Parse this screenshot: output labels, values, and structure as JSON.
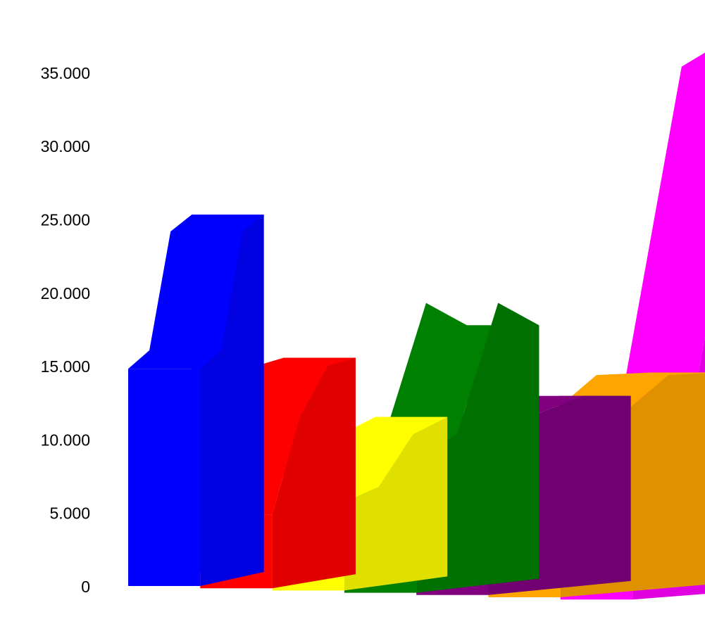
{
  "chart_data": {
    "type": "area",
    "style": "3d-ribbon",
    "title": "",
    "xlabel": "",
    "ylabel": "",
    "ylim": [
      0,
      37500
    ],
    "y_ticks": [
      "0",
      "5.000",
      "10.000",
      "15.000",
      "20.000",
      "25.000",
      "30.000",
      "35.000"
    ],
    "y_tick_values": [
      0,
      5000,
      10000,
      15000,
      20000,
      25000,
      30000,
      35000
    ],
    "grid": false,
    "legend": "none",
    "x_points": 4,
    "series": [
      {
        "color": "#0000ff",
        "values": [
          14800,
          15900,
          24000,
          25100
        ]
      },
      {
        "color": "#ff0000",
        "values": [
          5000,
          11500,
          14800,
          15200
        ]
      },
      {
        "color": "#ffff00",
        "values": [
          6000,
          6800,
          10200,
          11200
        ]
      },
      {
        "color": "#008000",
        "values": [
          9000,
          10600,
          19500,
          17800
        ]
      },
      {
        "color": "#800080",
        "values": [
          11800,
          12100,
          13200,
          13000
        ]
      },
      {
        "color": "#ffa500",
        "values": [
          7500,
          11800,
          14800,
          14800
        ]
      },
      {
        "color": "#ff00ff",
        "values": [
          13000,
          13200,
          36400,
          39000
        ]
      }
    ]
  }
}
